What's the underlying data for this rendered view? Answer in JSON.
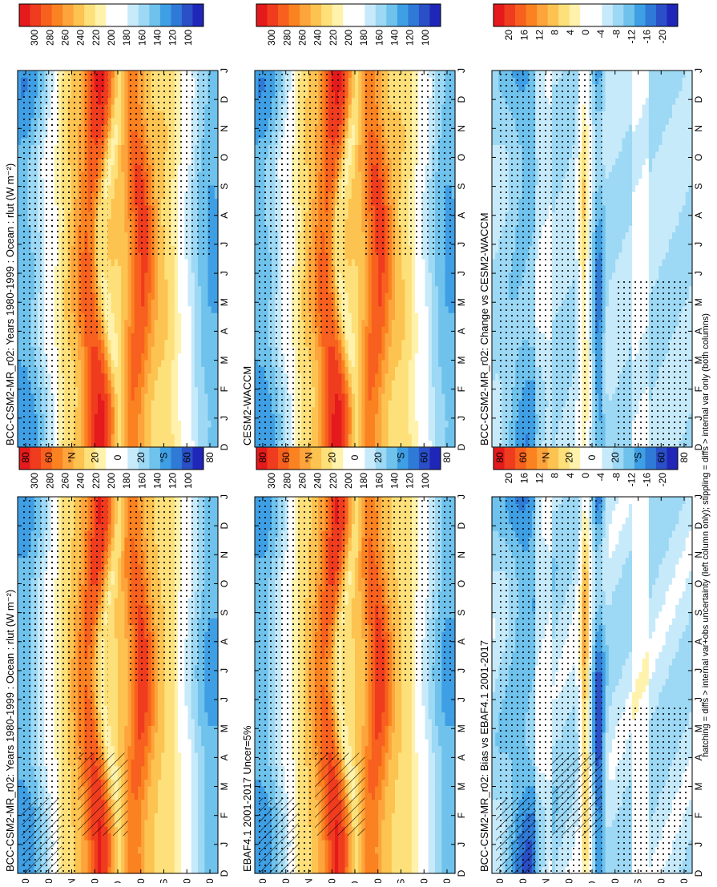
{
  "figure": {
    "footer_note": "hatching = diffs > internal var+obs uncertainty (left column only); stippling = diffs > internal var only (both columns)",
    "palette_warm_to_cold": [
      "#e41a1c",
      "#f03c1e",
      "#f7601e",
      "#fa8220",
      "#fda43c",
      "#fdc350",
      "#fde07a",
      "#fff2ac",
      "#ffffff",
      "#ffffff",
      "#c7eafa",
      "#9dd8f4",
      "#6ec2ec",
      "#3f9fe4",
      "#2f7ad6",
      "#2a4fc6",
      "#1f26b8"
    ],
    "hatching_color": "#000000",
    "stipple_color": "#000000"
  },
  "chart_data": [
    {
      "id": "model-left",
      "type": "heatmap",
      "title": "BCC-CSM2-MR_r02: Years 1980-1999 : Ocean : rlut (W m⁻²)",
      "x_ticks": [
        "D",
        "J",
        "F",
        "M",
        "A",
        "M",
        "J",
        "J",
        "A",
        "S",
        "O",
        "N",
        "D",
        "J"
      ],
      "y_ticks": [
        "80",
        "60",
        "°N",
        "20",
        "0",
        "20",
        "°S",
        "60",
        "80"
      ],
      "y_range": [
        90,
        -90
      ],
      "colorbar_ticks": [
        "300",
        "280",
        "260",
        "240",
        "220",
        "200",
        "180",
        "160",
        "140",
        "120",
        "100"
      ],
      "colorbar_range": [
        100,
        320
      ],
      "field": "climatology",
      "hatching": true,
      "stippling": true
    },
    {
      "id": "model-right",
      "type": "heatmap",
      "title": "BCC-CSM2-MR_r02: Years 1980-1999 : Ocean : rlut (W m⁻²)",
      "x_ticks": [
        "D",
        "J",
        "F",
        "M",
        "A",
        "M",
        "J",
        "J",
        "A",
        "S",
        "O",
        "N",
        "D",
        "J"
      ],
      "y_ticks": [
        "80",
        "60",
        "°N",
        "20",
        "0",
        "20",
        "°S",
        "60",
        "80"
      ],
      "y_range": [
        90,
        -90
      ],
      "colorbar_ticks": [
        "300",
        "280",
        "260",
        "240",
        "220",
        "200",
        "180",
        "160",
        "140",
        "120",
        "100"
      ],
      "colorbar_range": [
        100,
        320
      ],
      "field": "climatology",
      "hatching": false,
      "stippling": true
    },
    {
      "id": "obs",
      "type": "heatmap",
      "title": "EBAF4.1 2001-2017 Uncer=5%",
      "x_ticks": [
        "D",
        "J",
        "F",
        "M",
        "A",
        "M",
        "J",
        "J",
        "A",
        "S",
        "O",
        "N",
        "D",
        "J"
      ],
      "y_ticks": [
        "80",
        "60",
        "°N",
        "20",
        "0",
        "20",
        "°S",
        "60",
        "80"
      ],
      "y_range": [
        90,
        -90
      ],
      "colorbar_ticks": [
        "300",
        "280",
        "260",
        "240",
        "220",
        "200",
        "180",
        "160",
        "140",
        "120",
        "100"
      ],
      "colorbar_range": [
        100,
        320
      ],
      "field": "climatology",
      "hatching": true,
      "stippling": true
    },
    {
      "id": "ref-model",
      "type": "heatmap",
      "title": "CESM2-WACCM",
      "x_ticks": [
        "D",
        "J",
        "F",
        "M",
        "A",
        "M",
        "J",
        "J",
        "A",
        "S",
        "O",
        "N",
        "D",
        "J"
      ],
      "y_ticks": [
        "80",
        "60",
        "°N",
        "20",
        "0",
        "20",
        "°S",
        "60",
        "80"
      ],
      "y_range": [
        90,
        -90
      ],
      "colorbar_ticks": [
        "300",
        "280",
        "260",
        "240",
        "220",
        "200",
        "180",
        "160",
        "140",
        "120",
        "100"
      ],
      "colorbar_range": [
        100,
        320
      ],
      "field": "climatology",
      "hatching": false,
      "stippling": true
    },
    {
      "id": "bias",
      "type": "heatmap",
      "title": "BCC-CSM2-MR_r02: Bias vs EBAF4.1 2001-2017",
      "x_ticks": [
        "D",
        "J",
        "F",
        "M",
        "A",
        "M",
        "J",
        "J",
        "A",
        "S",
        "O",
        "N",
        "D",
        "J"
      ],
      "y_ticks": [
        "80",
        "60",
        "°N",
        "20",
        "0",
        "20",
        "°S",
        "60",
        "80"
      ],
      "y_range": [
        90,
        -90
      ],
      "colorbar_ticks": [
        "20",
        "16",
        "12",
        "8",
        "4",
        "0",
        "-4",
        "-8",
        "-12",
        "-16",
        "-20"
      ],
      "colorbar_range": [
        -22,
        22
      ],
      "field": "bias",
      "hatching": true,
      "stippling": true
    },
    {
      "id": "change",
      "type": "heatmap",
      "title": "BCC-CSM2-MR_r02: Change vs CESM2-WACCM",
      "x_ticks": [
        "D",
        "J",
        "F",
        "M",
        "A",
        "M",
        "J",
        "J",
        "A",
        "S",
        "O",
        "N",
        "D",
        "J"
      ],
      "y_ticks": [
        "80",
        "60",
        "°N",
        "20",
        "0",
        "20",
        "°S",
        "60",
        "80"
      ],
      "y_range": [
        90,
        -90
      ],
      "colorbar_ticks": [
        "20",
        "16",
        "12",
        "8",
        "4",
        "0",
        "-4",
        "-8",
        "-12",
        "-16",
        "-20"
      ],
      "colorbar_range": [
        -22,
        22
      ],
      "field": "change",
      "hatching": false,
      "stippling": true
    }
  ]
}
